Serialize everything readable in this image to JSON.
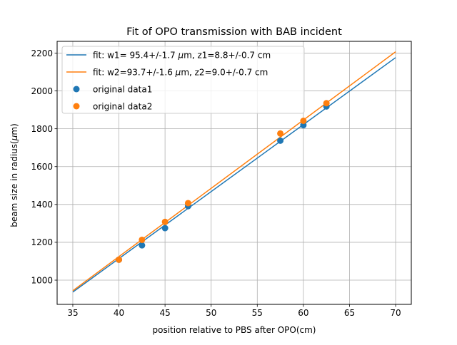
{
  "chart_data": {
    "type": "scatter",
    "title": "Fit of OPO transmission with BAB incident",
    "xlabel": "position relative to PBS after OPO(cm)",
    "ylabel_prefix": "beam size in radius(",
    "ylabel_mu": "μ",
    "ylabel_suffix": "m)",
    "xlim": [
      33.3,
      71.7
    ],
    "ylim": [
      872,
      2262
    ],
    "xticks": [
      35,
      40,
      45,
      50,
      55,
      60,
      65,
      70
    ],
    "yticks": [
      1000,
      1200,
      1400,
      1600,
      1800,
      2000,
      2200
    ],
    "grid": true,
    "legend_position": "upper-left",
    "series": [
      {
        "name": "fit: w1= 95.4+/-1.7 μm, z1=8.8+/-0.7 cm",
        "kind": "line",
        "color": "#1f77b4",
        "x": [
          35,
          70
        ],
        "y": [
          937,
          2176
        ]
      },
      {
        "name": "fit: w2=93.7+/-1.6 μm, z2=9.0+/-0.7 cm",
        "kind": "line",
        "color": "#ff7f0e",
        "x": [
          35,
          70
        ],
        "y": [
          944,
          2207
        ]
      },
      {
        "name": "original data1",
        "kind": "scatter",
        "color": "#1f77b4",
        "x": [
          40,
          42.5,
          45,
          47.5,
          57.5,
          60,
          62.5
        ],
        "y": [
          1108,
          1184,
          1275,
          1391,
          1737,
          1819,
          1918
        ]
      },
      {
        "name": "original data2",
        "kind": "scatter",
        "color": "#ff7f0e",
        "x": [
          40,
          42.5,
          45,
          47.5,
          57.5,
          60,
          62.5
        ],
        "y": [
          1108,
          1213,
          1308,
          1407,
          1775,
          1842,
          1935
        ]
      }
    ]
  }
}
